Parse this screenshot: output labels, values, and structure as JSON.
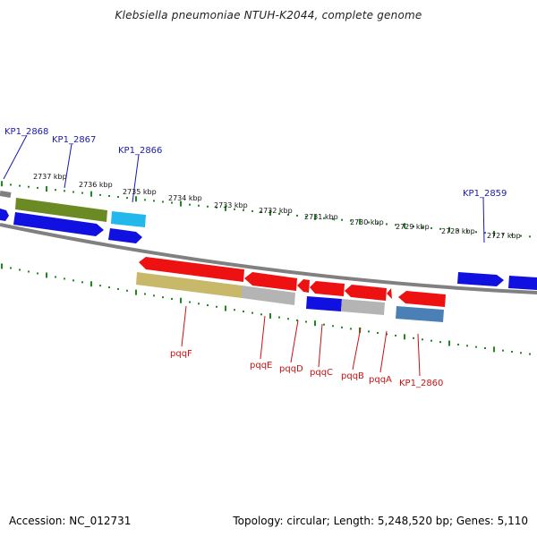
{
  "title": "Klebsiella pneumoniae NTUH-K2044, complete genome",
  "accession": "Accession: NC_012731",
  "summary": "Topology: circular; Length: 5,248,520 bp; Genes: 5,110",
  "ticks": [
    "2737 kbp",
    "2736 kbp",
    "2735 kbp",
    "2734 kbp",
    "2733 kbp",
    "2732 kbp",
    "2731 kbp",
    "2730 kbp",
    "2729 kbp",
    "2728 kbp",
    "2727 kbp"
  ],
  "upper_labels": [
    "KP1_2868",
    "KP1_2867",
    "KP1_2866",
    "KP1_2859"
  ],
  "lower_labels": [
    "pqqF",
    "pqqE",
    "pqqD",
    "pqqC",
    "pqqB",
    "pqqA",
    "KP1_2860"
  ],
  "colors": {
    "blue_label": "#1a1aaa",
    "red_label": "#cc1111",
    "tick": "#1d8a1d",
    "backbone": "#808080",
    "gene_blue": "#1010e0",
    "gene_red": "#ee1111",
    "gene_olive": "#6b8a23",
    "gene_khaki": "#c8b86a",
    "gene_gray": "#b4b4b4",
    "gene_cyan": "#22b8ec",
    "gene_steel": "#4a80b6"
  }
}
